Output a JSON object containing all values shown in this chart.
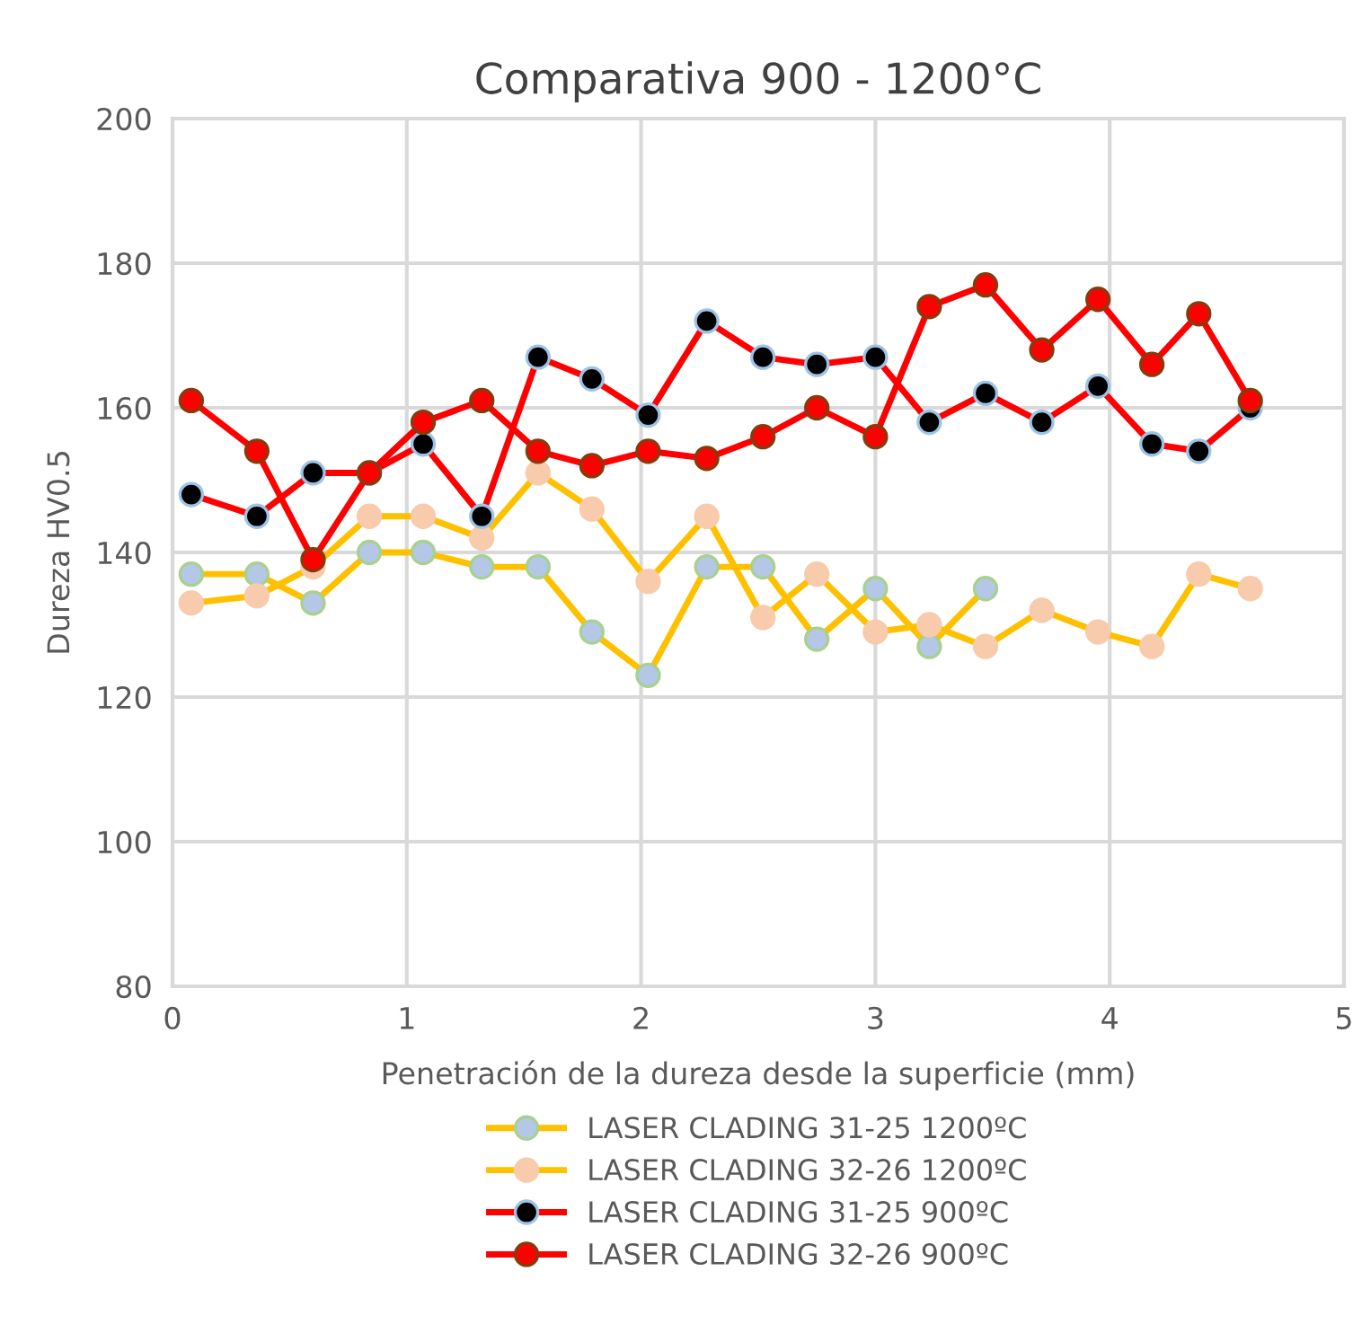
{
  "chart_data": {
    "type": "line",
    "title": "Comparativa 900 - 1200°C",
    "xlabel": "Penetración de la dureza desde la superficie (mm)",
    "ylabel": "Dureza HV0.5",
    "x": [
      0.08,
      0.36,
      0.6,
      0.84,
      1.07,
      1.32,
      1.56,
      1.79,
      2.03,
      2.28,
      2.52,
      2.75,
      3.0,
      3.23,
      3.47,
      3.71,
      3.95,
      4.18,
      4.38,
      4.6
    ],
    "series": [
      {
        "name": "LASER CLADING 31-25 1200ºC",
        "color": "#ffc000",
        "values": [
          137,
          137,
          133,
          140,
          140,
          138,
          138,
          129,
          123,
          138,
          138,
          128,
          135,
          127,
          135,
          null,
          null,
          null,
          null,
          null
        ]
      },
      {
        "name": "LASER CLADING 32-26 1200ºC",
        "color": "#ffc000",
        "values": [
          133,
          134,
          138,
          145,
          145,
          142,
          151,
          146,
          136,
          145,
          131,
          137,
          129,
          130,
          127,
          132,
          129,
          127,
          137,
          135
        ]
      },
      {
        "name": "LASER CLADING 31-25 900ºC",
        "color": "#ff0000",
        "values": [
          148,
          145,
          151,
          151,
          155,
          145,
          167,
          164,
          159,
          172,
          167,
          166,
          167,
          158,
          162,
          158,
          163,
          155,
          154,
          160
        ]
      },
      {
        "name": "LASER CLADING 32-26 900ºC",
        "color": "#ff0000",
        "values": [
          161,
          154,
          139,
          151,
          158,
          161,
          154,
          152,
          154,
          153,
          156,
          160,
          156,
          174,
          177,
          168,
          175,
          166,
          173,
          161
        ]
      }
    ],
    "xlim": [
      0,
      5
    ],
    "xticks": [
      0,
      1,
      2,
      3,
      4,
      5
    ],
    "ylim": [
      80,
      200
    ],
    "yticks": [
      80,
      100,
      120,
      140,
      160,
      180,
      200
    ],
    "grid": true,
    "legend": "bottom",
    "marker": "circle",
    "line_style": "solid"
  }
}
